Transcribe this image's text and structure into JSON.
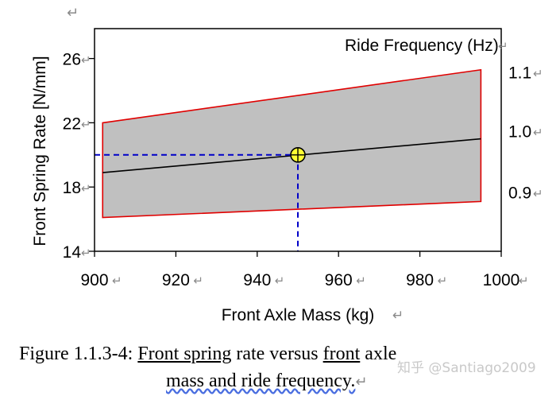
{
  "chart_data": {
    "type": "area",
    "xlabel": "Front Axle Mass (kg)",
    "ylabel": "Front Spring Rate [N/mm]",
    "y2label": "Ride Frequency (Hz)",
    "xlim": [
      900,
      1000
    ],
    "ylim": [
      14,
      28
    ],
    "x_ticks": [
      "900",
      "920",
      "940",
      "960",
      "980",
      "1000"
    ],
    "y_ticks": [
      "14",
      "18",
      "22",
      "26"
    ],
    "y2_ticks": [
      "0.9",
      "1.0",
      "1.1"
    ],
    "series": [
      {
        "name": "1.1",
        "x": [
          902,
          995
        ],
        "y": [
          22.0,
          25.3
        ],
        "color": "#e00000"
      },
      {
        "name": "1.0",
        "x": [
          902,
          995
        ],
        "y": [
          18.9,
          21.0
        ],
        "color": "#000000"
      },
      {
        "name": "0.9",
        "x": [
          902,
          995
        ],
        "y": [
          16.1,
          17.1
        ],
        "color": "#e00000"
      }
    ],
    "band_fill": "#c0c0c0",
    "highlight_point": {
      "x": 950,
      "y": 20.0,
      "color": "#ffff33"
    },
    "guide_color": "#0000c8",
    "grid": false
  },
  "caption": {
    "label": "Figure 1.1.3-4: ",
    "underlined1": "Front spring",
    "text1": " rate versus ",
    "underlined2": "front",
    "text2": " axle",
    "line2": "mass and ride frequency."
  },
  "watermark": "知乎 @Santiago2009",
  "pilcrow": "↵"
}
